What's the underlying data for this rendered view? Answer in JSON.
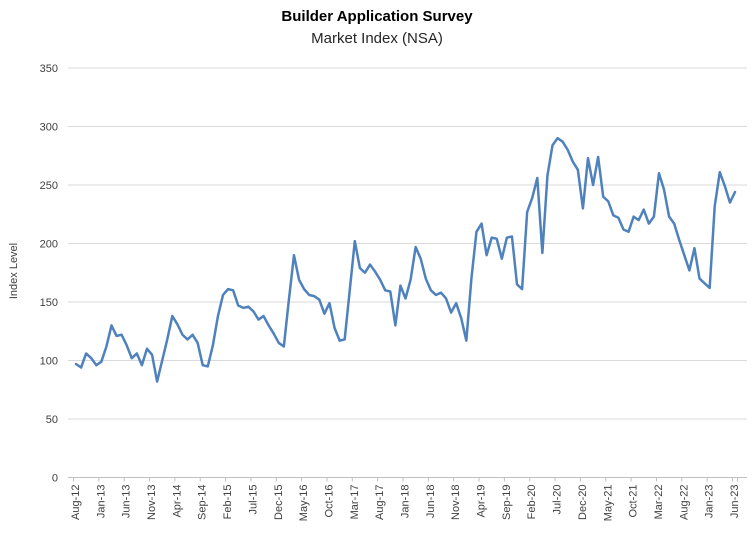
{
  "chart": {
    "title": "Builder Application Survey",
    "subtitle": "Market Index (NSA)",
    "y_axis_label": "Index Level"
  },
  "chart_data": {
    "type": "line",
    "title": "Builder Application Survey",
    "subtitle": "Market Index (NSA)",
    "xlabel": "",
    "ylabel": "Index Level",
    "ylim": [
      0,
      350
    ],
    "y_ticks": [
      0,
      50,
      100,
      150,
      200,
      250,
      300,
      350
    ],
    "grid": "horizontal",
    "legend_position": "none",
    "line_color": "#4F81BD",
    "frequency": "monthly",
    "x_tick_step_months": 5,
    "x_tick_labels": [
      "Aug-12",
      "Jan-13",
      "Jun-13",
      "Nov-13",
      "Apr-14",
      "Sep-14",
      "Feb-15",
      "Jul-15",
      "Dec-15",
      "May-16",
      "Oct-16",
      "Mar-17",
      "Aug-17",
      "Jan-18",
      "Jun-18",
      "Nov-18",
      "Apr-19",
      "Sep-19",
      "Feb-20",
      "Jul-20",
      "Dec-20",
      "May-21",
      "Oct-21",
      "Mar-22",
      "Aug-22",
      "Jan-23",
      "Jun-23"
    ],
    "series": [
      {
        "name": "Market Index (NSA)",
        "x": [
          "Aug-12",
          "Sep-12",
          "Oct-12",
          "Nov-12",
          "Dec-12",
          "Jan-13",
          "Feb-13",
          "Mar-13",
          "Apr-13",
          "May-13",
          "Jun-13",
          "Jul-13",
          "Aug-13",
          "Sep-13",
          "Oct-13",
          "Nov-13",
          "Dec-13",
          "Jan-14",
          "Feb-14",
          "Mar-14",
          "Apr-14",
          "May-14",
          "Jun-14",
          "Jul-14",
          "Aug-14",
          "Sep-14",
          "Oct-14",
          "Nov-14",
          "Dec-14",
          "Jan-15",
          "Feb-15",
          "Mar-15",
          "Apr-15",
          "May-15",
          "Jun-15",
          "Jul-15",
          "Aug-15",
          "Sep-15",
          "Oct-15",
          "Nov-15",
          "Dec-15",
          "Jan-16",
          "Feb-16",
          "Mar-16",
          "Apr-16",
          "May-16",
          "Jun-16",
          "Jul-16",
          "Aug-16",
          "Sep-16",
          "Oct-16",
          "Nov-16",
          "Dec-16",
          "Jan-17",
          "Feb-17",
          "Mar-17",
          "Apr-17",
          "May-17",
          "Jun-17",
          "Jul-17",
          "Aug-17",
          "Sep-17",
          "Oct-17",
          "Nov-17",
          "Dec-17",
          "Jan-18",
          "Feb-18",
          "Mar-18",
          "Apr-18",
          "May-18",
          "Jun-18",
          "Jul-18",
          "Aug-18",
          "Sep-18",
          "Oct-18",
          "Nov-18",
          "Dec-18",
          "Jan-19",
          "Feb-19",
          "Mar-19",
          "Apr-19",
          "May-19",
          "Jun-19",
          "Jul-19",
          "Aug-19",
          "Sep-19",
          "Oct-19",
          "Nov-19",
          "Dec-19",
          "Jan-20",
          "Feb-20",
          "Mar-20",
          "Apr-20",
          "May-20",
          "Jun-20",
          "Jul-20",
          "Aug-20",
          "Sep-20",
          "Oct-20",
          "Nov-20",
          "Dec-20",
          "Jan-21",
          "Feb-21",
          "Mar-21",
          "Apr-21",
          "May-21",
          "Jun-21",
          "Jul-21",
          "Aug-21",
          "Sep-21",
          "Oct-21",
          "Nov-21",
          "Dec-21",
          "Jan-22",
          "Feb-22",
          "Mar-22",
          "Apr-22",
          "May-22",
          "Jun-22",
          "Jul-22",
          "Aug-22",
          "Sep-22",
          "Oct-22",
          "Nov-22",
          "Dec-22",
          "Jan-23",
          "Feb-23",
          "Mar-23",
          "Apr-23",
          "May-23",
          "Jun-23"
        ],
        "values": [
          97,
          94,
          106,
          102,
          96,
          99,
          112,
          130,
          121,
          122,
          113,
          102,
          106,
          96,
          110,
          105,
          82,
          100,
          118,
          138,
          131,
          122,
          118,
          122,
          115,
          96,
          95,
          113,
          138,
          156,
          161,
          160,
          147,
          145,
          146,
          142,
          135,
          138,
          130,
          123,
          115,
          112,
          152,
          190,
          169,
          161,
          156,
          155,
          152,
          140,
          149,
          128,
          117,
          118,
          160,
          202,
          179,
          175,
          182,
          176,
          169,
          160,
          159,
          130,
          164,
          153,
          169,
          197,
          187,
          170,
          160,
          156,
          158,
          153,
          141,
          149,
          136,
          117,
          170,
          210,
          217,
          190,
          205,
          204,
          187,
          205,
          206,
          165,
          161,
          227,
          239,
          256,
          192,
          258,
          284,
          290,
          287,
          280,
          270,
          263,
          230,
          273,
          250,
          274,
          240,
          236,
          224,
          222,
          212,
          210,
          223,
          220,
          229,
          217,
          223,
          260,
          246,
          223,
          217,
          203,
          190,
          177,
          196,
          170,
          166,
          162,
          232,
          261,
          249,
          235,
          244
        ]
      }
    ]
  },
  "style": {
    "gridline_color": "#D9D9D9",
    "axis_color": "#BFBFBF",
    "tick_label_color": "#404040"
  }
}
